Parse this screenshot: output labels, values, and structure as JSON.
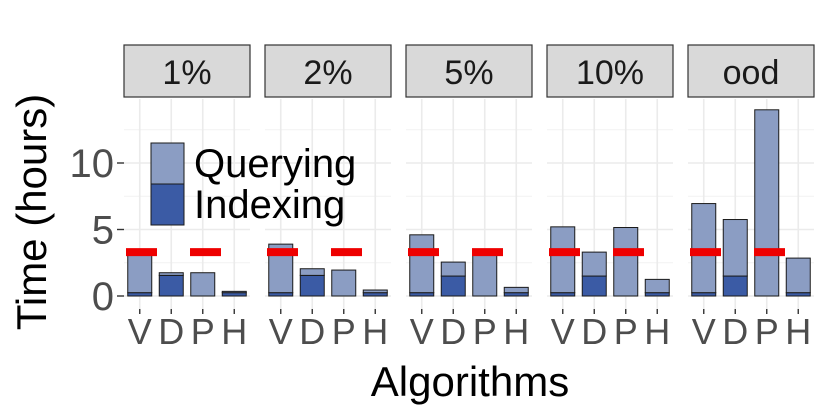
{
  "chart_data": {
    "type": "bar",
    "stacked": true,
    "facets": [
      "1%",
      "2%",
      "5%",
      "10%",
      "ood"
    ],
    "categories": [
      "V",
      "D",
      "P",
      "H"
    ],
    "xlabel": "Algorithms",
    "ylabel": "Time (hours)",
    "ylim": [
      0,
      14
    ],
    "yticks": [
      0,
      5,
      10
    ],
    "series": [
      {
        "name": "Indexing",
        "color": "#3b5ba5",
        "values": [
          [
            0.25,
            1.55,
            0.0,
            0.25
          ],
          [
            0.25,
            1.55,
            0.0,
            0.25
          ],
          [
            0.25,
            1.5,
            0.0,
            0.25
          ],
          [
            0.25,
            1.5,
            0.0,
            0.25
          ],
          [
            0.25,
            1.5,
            0.0,
            0.25
          ]
        ]
      },
      {
        "name": "Querying",
        "color": "#8b9dc3",
        "values": [
          [
            2.9,
            0.2,
            1.75,
            0.1
          ],
          [
            3.65,
            0.5,
            1.95,
            0.2
          ],
          [
            4.35,
            1.05,
            3.3,
            0.4
          ],
          [
            4.95,
            1.8,
            5.15,
            1.0
          ],
          [
            6.7,
            4.25,
            14.0,
            2.6
          ]
        ]
      }
    ],
    "reference_line": {
      "value": 3.3,
      "color": "#ee0000"
    },
    "legend": {
      "placement": "top-left",
      "entries": [
        "Querying",
        "Indexing"
      ]
    },
    "grid": true
  }
}
